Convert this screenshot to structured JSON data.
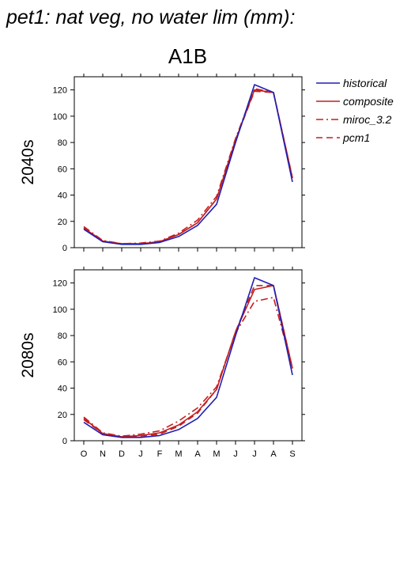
{
  "title": "pet1: nat veg, no water lim (mm):",
  "scenario": "A1B",
  "colors": {
    "historical": "#1f1fb4",
    "composite": "#c41e1e",
    "miroc_3.2": "#c41e1e",
    "pcm1": "#c41e1e"
  },
  "chart_data": [
    {
      "type": "line",
      "row_label": "2040s",
      "categories": [
        "O",
        "N",
        "D",
        "J",
        "F",
        "M",
        "A",
        "M",
        "J",
        "J",
        "A",
        "S"
      ],
      "ylim": [
        0,
        130
      ],
      "yticks": [
        0,
        20,
        40,
        60,
        80,
        100,
        120
      ],
      "series": [
        {
          "name": "historical",
          "values": [
            14,
            4.5,
            2.5,
            2.5,
            4,
            8.5,
            17,
            33,
            80,
            124,
            118,
            50
          ]
        },
        {
          "name": "composite",
          "values": [
            15,
            5,
            3,
            3,
            4.5,
            10,
            19,
            37,
            82,
            120,
            118,
            53
          ]
        },
        {
          "name": "miroc_3.2",
          "values": [
            16,
            5.5,
            3,
            3.5,
            5,
            11,
            21,
            39,
            83,
            121,
            118,
            53
          ]
        },
        {
          "name": "pcm1",
          "values": [
            15,
            5,
            3,
            3,
            4.5,
            10,
            19,
            37,
            82,
            119,
            118,
            53
          ]
        }
      ]
    },
    {
      "type": "line",
      "row_label": "2080s",
      "categories": [
        "O",
        "N",
        "D",
        "J",
        "F",
        "M",
        "A",
        "M",
        "J",
        "J",
        "A",
        "S"
      ],
      "ylim": [
        0,
        130
      ],
      "yticks": [
        0,
        20,
        40,
        60,
        80,
        100,
        120
      ],
      "series": [
        {
          "name": "historical",
          "values": [
            14,
            4.5,
            2.5,
            2.5,
            4,
            8.5,
            17,
            33,
            80,
            124,
            118,
            50
          ]
        },
        {
          "name": "composite",
          "values": [
            17,
            5.5,
            3,
            4,
            6,
            12,
            22,
            39,
            83,
            115,
            118,
            55
          ]
        },
        {
          "name": "miroc_3.2",
          "values": [
            18,
            6,
            3.5,
            5,
            7.5,
            15,
            25,
            41,
            82,
            106,
            109,
            55
          ]
        },
        {
          "name": "pcm1",
          "values": [
            16,
            5.5,
            3,
            3.5,
            5,
            11,
            21,
            39,
            83,
            118,
            118,
            55
          ]
        }
      ]
    }
  ],
  "legend": {
    "items": [
      "historical",
      "composite",
      "miroc_3.2",
      "pcm1"
    ]
  }
}
